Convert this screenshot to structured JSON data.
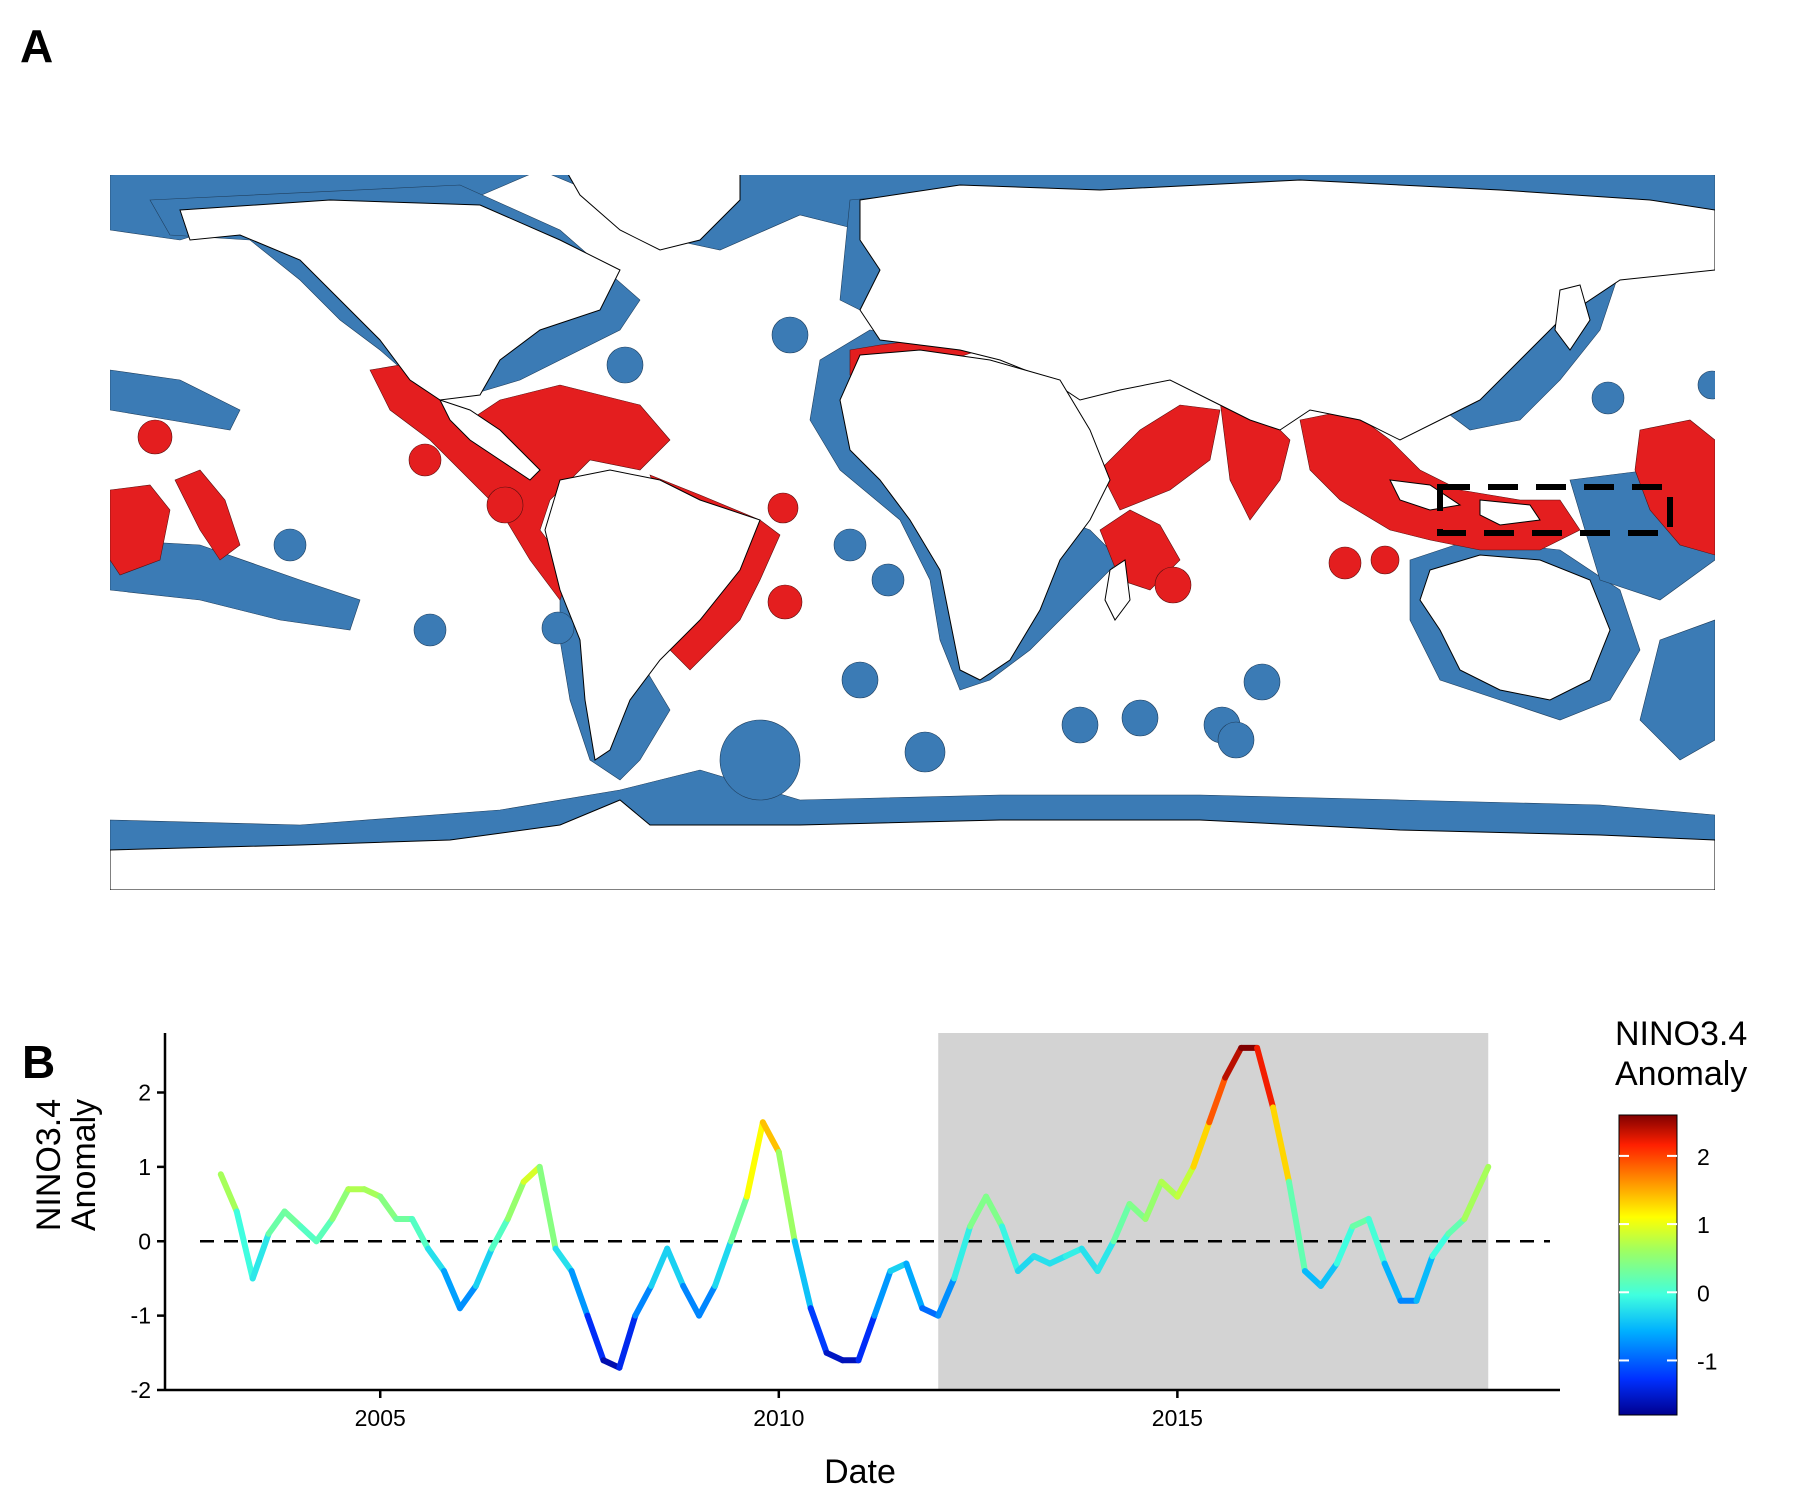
{
  "panel_a": {
    "label": "A",
    "colors": {
      "affected": "#e41e1f",
      "unaffected": "#3b7bb5",
      "land": "#ffffff"
    },
    "inset_box": "dashed"
  },
  "panel_b": {
    "label": "B",
    "legend_title_line1": "NINO3.4",
    "legend_title_line2": "Anomaly"
  },
  "chart_data": {
    "type": "line",
    "title": "",
    "xlabel": "Date",
    "ylabel_line1": "NINO3.4",
    "ylabel_line2": "Anomaly",
    "xlim": [
      2002.3,
      2019.8
    ],
    "ylim": [
      -2,
      2.8
    ],
    "x_ticks": [
      2005,
      2010,
      2015
    ],
    "y_ticks": [
      -2,
      -1,
      0,
      1,
      2
    ],
    "reference_line": {
      "y": 0,
      "style": "dashed"
    },
    "shaded_period": [
      2012.0,
      2018.9
    ],
    "color_scale": {
      "type": "continuous",
      "palette": "jet",
      "min": -1.8,
      "max": 2.6,
      "ticks": [
        -1,
        0,
        1,
        2
      ]
    },
    "series": [
      {
        "x": [
          2003.0,
          2003.2,
          2003.4,
          2003.6,
          2003.8,
          2004.0,
          2004.2,
          2004.4,
          2004.6,
          2004.8,
          2005.0,
          2005.2,
          2005.4,
          2005.6,
          2005.8,
          2006.0,
          2006.2,
          2006.4,
          2006.6,
          2006.8,
          2007.0,
          2007.2,
          2007.4,
          2007.6,
          2007.8,
          2008.0,
          2008.2,
          2008.4,
          2008.6,
          2008.8,
          2009.0,
          2009.2,
          2009.4,
          2009.6,
          2009.8,
          2010.0,
          2010.2,
          2010.4,
          2010.6,
          2010.8,
          2011.0,
          2011.2,
          2011.4,
          2011.6,
          2011.8,
          2012.0,
          2012.2,
          2012.4,
          2012.6,
          2012.8,
          2013.0,
          2013.2,
          2013.4,
          2013.6,
          2013.8,
          2014.0,
          2014.2,
          2014.4,
          2014.6,
          2014.8,
          2015.0,
          2015.2,
          2015.4,
          2015.6,
          2015.8,
          2016.0,
          2016.2,
          2016.4,
          2016.6,
          2016.8,
          2017.0,
          2017.2,
          2017.4,
          2017.6,
          2017.8,
          2018.0,
          2018.2,
          2018.4,
          2018.6,
          2018.9
        ],
        "y": [
          0.9,
          0.4,
          -0.5,
          0.1,
          0.4,
          0.2,
          0.0,
          0.3,
          0.7,
          0.7,
          0.6,
          0.3,
          0.3,
          -0.1,
          -0.4,
          -0.9,
          -0.6,
          -0.1,
          0.3,
          0.8,
          1.0,
          -0.1,
          -0.4,
          -1.0,
          -1.6,
          -1.7,
          -1.0,
          -0.6,
          -0.1,
          -0.6,
          -1.0,
          -0.6,
          0.0,
          0.6,
          1.6,
          1.2,
          0.0,
          -0.9,
          -1.5,
          -1.6,
          -1.6,
          -1.0,
          -0.4,
          -0.3,
          -0.9,
          -1.0,
          -0.5,
          0.2,
          0.6,
          0.2,
          -0.4,
          -0.2,
          -0.3,
          -0.2,
          -0.1,
          -0.4,
          0.0,
          0.5,
          0.3,
          0.8,
          0.6,
          1.0,
          1.6,
          2.2,
          2.6,
          2.6,
          1.8,
          0.8,
          -0.4,
          -0.6,
          -0.3,
          0.2,
          0.3,
          -0.3,
          -0.8,
          -0.8,
          -0.2,
          0.1,
          0.3,
          1.0
        ]
      }
    ]
  }
}
